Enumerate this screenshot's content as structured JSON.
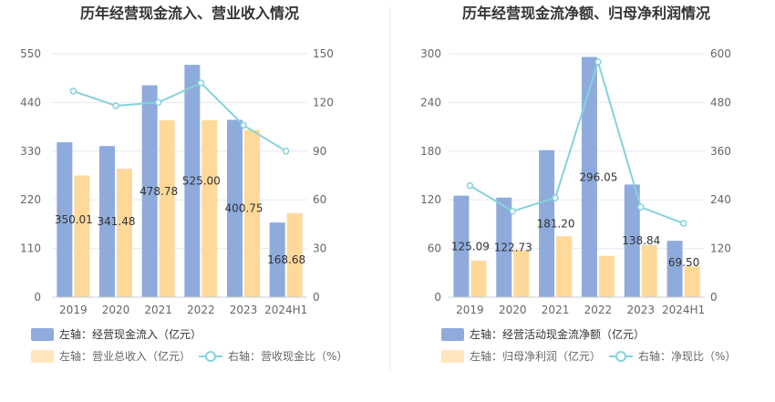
{
  "colors": {
    "bar_primary": "#8eabdc",
    "bar_secondary": "#ffd99a",
    "line": "#85d3da",
    "grid": "#e6e9f0",
    "axis": "#c8ccd4",
    "divider": "#eeeeee"
  },
  "chart_data": [
    {
      "type": "bar",
      "title": "历年经营现金流入、营业收入情况",
      "categories": [
        "2019",
        "2020",
        "2021",
        "2022",
        "2023",
        "2024H1"
      ],
      "left_ticks": [
        "0",
        "110",
        "220",
        "330",
        "440",
        "550"
      ],
      "right_ticks": [
        "0",
        "30",
        "60",
        "90",
        "120",
        "150"
      ],
      "ylim_left": [
        0,
        550
      ],
      "ylim_right": [
        0,
        150
      ],
      "series": [
        {
          "name": "左轴：经营现金流入（亿元）",
          "axis": "left",
          "kind": "bar",
          "values": [
            350.01,
            341.48,
            478.78,
            525.0,
            400.75,
            168.68
          ],
          "labels": [
            "350.01",
            "341.48",
            "478.78",
            "525.00",
            "400.75",
            "168.68"
          ]
        },
        {
          "name": "左轴：营业总收入（亿元）",
          "axis": "left",
          "kind": "bar",
          "values": [
            275,
            290,
            400,
            400,
            378,
            190
          ]
        },
        {
          "name": "右轴：营收现金比（%）",
          "axis": "right",
          "kind": "line",
          "values": [
            127,
            118,
            120,
            132,
            106,
            90
          ]
        }
      ]
    },
    {
      "type": "bar",
      "title": "历年经营现金流净额、归母净利润情况",
      "categories": [
        "2019",
        "2020",
        "2021",
        "2022",
        "2023",
        "2024H1"
      ],
      "left_ticks": [
        "0",
        "60",
        "120",
        "180",
        "240",
        "300"
      ],
      "right_ticks": [
        "0",
        "120",
        "240",
        "360",
        "480",
        "600"
      ],
      "ylim_left": [
        0,
        300
      ],
      "ylim_right": [
        0,
        600
      ],
      "series": [
        {
          "name": "左轴：经营活动现金流净额（亿元）",
          "axis": "left",
          "kind": "bar",
          "values": [
            125.09,
            122.73,
            181.2,
            296.05,
            138.84,
            69.5
          ],
          "labels": [
            "125.09",
            "122.73",
            "181.20",
            "296.05",
            "138.84",
            "69.50"
          ]
        },
        {
          "name": "左轴：归母净利润（亿元）",
          "axis": "left",
          "kind": "bar",
          "values": [
            45,
            58,
            75,
            51,
            64,
            38
          ]
        },
        {
          "name": "右轴：净现比（%）",
          "axis": "right",
          "kind": "line",
          "values": [
            275,
            212,
            245,
            580,
            222,
            182
          ]
        }
      ]
    }
  ]
}
